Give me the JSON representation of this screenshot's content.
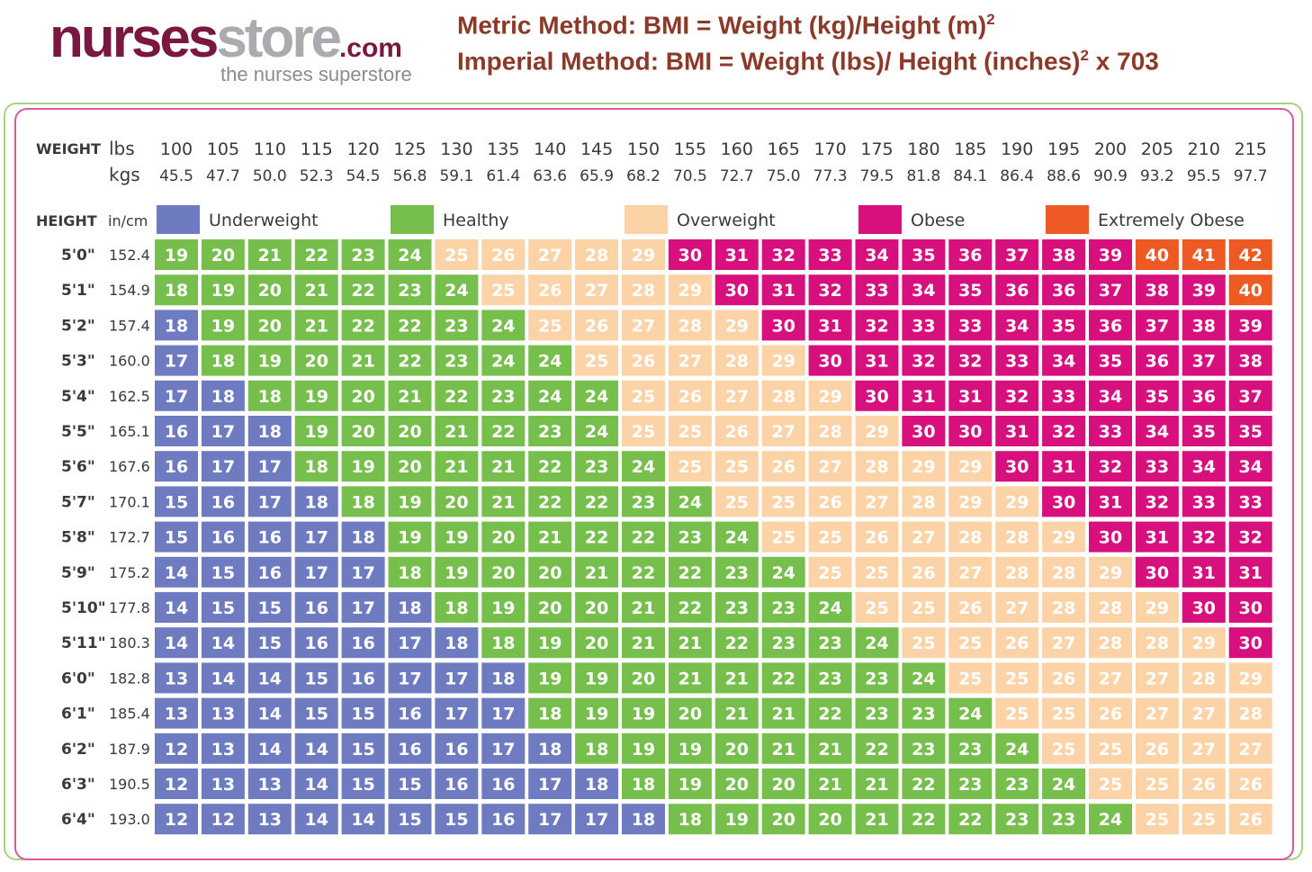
{
  "logo": {
    "brand_part1": "nurses",
    "brand_part2": "store",
    "brand_part3": ".com",
    "tagline": "the nurses superstore"
  },
  "formulas": {
    "metric": "Metric Method: BMI = Weight (kg)/Height (m)",
    "metric_sup": "2",
    "imperial": "Imperial Method: BMI = Weight (lbs)/ Height (inches)",
    "imperial_sup": "2",
    "imperial_suffix": " x 703"
  },
  "colors": {
    "Underweight": "#6f7bc0",
    "Healthy": "#76bf4c",
    "Overweight": "#fcd3a6",
    "Obese": "#d8107e",
    "Extremely Obese": "#ee5a24"
  },
  "chart_data": {
    "type": "heatmap",
    "header_labels": {
      "weight": "WEIGHT",
      "lbs": "lbs",
      "kgs": "kgs",
      "height": "HEIGHT",
      "incm": "in/cm"
    },
    "weights_lbs": [
      "100",
      "105",
      "110",
      "115",
      "120",
      "125",
      "130",
      "135",
      "140",
      "145",
      "150",
      "155",
      "160",
      "165",
      "170",
      "175",
      "180",
      "185",
      "190",
      "195",
      "200",
      "205",
      "210",
      "215"
    ],
    "weights_kgs": [
      "45.5",
      "47.7",
      "50.0",
      "52.3",
      "54.5",
      "56.8",
      "59.1",
      "61.4",
      "63.6",
      "65.9",
      "68.2",
      "70.5",
      "72.7",
      "75.0",
      "77.3",
      "79.5",
      "81.8",
      "84.1",
      "86.4",
      "88.6",
      "90.9",
      "93.2",
      "95.5",
      "97.7"
    ],
    "heights_ft": [
      "5'0\"",
      "5'1\"",
      "5'2\"",
      "5'3\"",
      "5'4\"",
      "5'5\"",
      "5'6\"",
      "5'7\"",
      "5'8\"",
      "5'9\"",
      "5'10\"",
      "5'11\"",
      "6'0\"",
      "6'1\"",
      "6'2\"",
      "6'3\"",
      "6'4\""
    ],
    "heights_cm": [
      "152.4",
      "154.9",
      "157.4",
      "160.0",
      "162.5",
      "165.1",
      "167.6",
      "170.1",
      "172.7",
      "175.2",
      "177.8",
      "180.3",
      "182.8",
      "185.4",
      "187.9",
      "190.5",
      "193.0"
    ],
    "legend": [
      "Underweight",
      "Healthy",
      "Overweight",
      "Obese",
      "Extremely Obese"
    ],
    "values": [
      [
        19,
        20,
        21,
        22,
        23,
        24,
        25,
        26,
        27,
        28,
        29,
        30,
        31,
        32,
        33,
        34,
        35,
        36,
        37,
        38,
        39,
        40,
        41,
        42
      ],
      [
        18,
        19,
        20,
        21,
        22,
        23,
        24,
        25,
        26,
        27,
        28,
        29,
        30,
        31,
        32,
        33,
        34,
        35,
        36,
        36,
        37,
        38,
        39,
        40
      ],
      [
        18,
        19,
        20,
        21,
        22,
        22,
        23,
        24,
        25,
        26,
        27,
        28,
        29,
        30,
        31,
        32,
        33,
        33,
        34,
        35,
        36,
        37,
        38,
        39
      ],
      [
        17,
        18,
        19,
        20,
        21,
        22,
        23,
        24,
        24,
        25,
        26,
        27,
        28,
        29,
        30,
        31,
        32,
        32,
        33,
        34,
        35,
        36,
        37,
        38
      ],
      [
        17,
        18,
        18,
        19,
        20,
        21,
        22,
        23,
        24,
        24,
        25,
        26,
        27,
        28,
        29,
        30,
        31,
        31,
        32,
        33,
        34,
        35,
        36,
        37
      ],
      [
        16,
        17,
        18,
        19,
        20,
        20,
        21,
        22,
        23,
        24,
        25,
        25,
        26,
        27,
        28,
        29,
        30,
        30,
        31,
        32,
        33,
        34,
        35,
        35
      ],
      [
        16,
        17,
        17,
        18,
        19,
        20,
        21,
        21,
        22,
        23,
        24,
        25,
        25,
        26,
        27,
        28,
        29,
        29,
        30,
        31,
        32,
        33,
        34,
        34
      ],
      [
        15,
        16,
        17,
        18,
        18,
        19,
        20,
        21,
        22,
        22,
        23,
        24,
        25,
        25,
        26,
        27,
        28,
        29,
        29,
        30,
        31,
        32,
        33,
        33
      ],
      [
        15,
        16,
        16,
        17,
        18,
        19,
        19,
        20,
        21,
        22,
        22,
        23,
        24,
        25,
        25,
        26,
        27,
        28,
        28,
        29,
        30,
        31,
        32,
        32
      ],
      [
        14,
        15,
        16,
        17,
        17,
        18,
        19,
        20,
        20,
        21,
        22,
        22,
        23,
        24,
        25,
        25,
        26,
        27,
        28,
        28,
        29,
        30,
        31,
        31
      ],
      [
        14,
        15,
        15,
        16,
        17,
        18,
        18,
        19,
        20,
        20,
        21,
        22,
        23,
        23,
        24,
        25,
        25,
        26,
        27,
        28,
        28,
        29,
        30,
        30
      ],
      [
        14,
        14,
        15,
        16,
        16,
        17,
        18,
        18,
        19,
        20,
        21,
        21,
        22,
        23,
        23,
        24,
        25,
        25,
        26,
        27,
        28,
        28,
        29,
        30
      ],
      [
        13,
        14,
        14,
        15,
        16,
        17,
        17,
        18,
        19,
        19,
        20,
        21,
        21,
        22,
        23,
        23,
        24,
        25,
        25,
        26,
        27,
        27,
        28,
        29
      ],
      [
        13,
        13,
        14,
        15,
        15,
        16,
        17,
        17,
        18,
        19,
        19,
        20,
        21,
        21,
        22,
        23,
        23,
        24,
        25,
        25,
        26,
        27,
        27,
        28
      ],
      [
        12,
        13,
        14,
        14,
        15,
        16,
        16,
        17,
        18,
        18,
        19,
        19,
        20,
        21,
        21,
        22,
        23,
        23,
        24,
        25,
        25,
        26,
        27,
        27
      ],
      [
        12,
        13,
        13,
        14,
        15,
        15,
        16,
        16,
        17,
        18,
        18,
        19,
        20,
        20,
        21,
        21,
        22,
        23,
        23,
        24,
        25,
        25,
        26,
        26
      ],
      [
        12,
        12,
        13,
        14,
        14,
        15,
        15,
        16,
        17,
        17,
        18,
        18,
        19,
        20,
        20,
        21,
        22,
        22,
        23,
        23,
        24,
        25,
        25,
        26
      ]
    ],
    "categories": [
      [
        "H",
        "H",
        "H",
        "H",
        "H",
        "H",
        "O",
        "O",
        "O",
        "O",
        "O",
        "B",
        "B",
        "B",
        "B",
        "B",
        "B",
        "B",
        "B",
        "B",
        "B",
        "E",
        "E",
        "E"
      ],
      [
        "H",
        "H",
        "H",
        "H",
        "H",
        "H",
        "H",
        "O",
        "O",
        "O",
        "O",
        "O",
        "B",
        "B",
        "B",
        "B",
        "B",
        "B",
        "B",
        "B",
        "B",
        "B",
        "B",
        "E"
      ],
      [
        "U",
        "H",
        "H",
        "H",
        "H",
        "H",
        "H",
        "H",
        "O",
        "O",
        "O",
        "O",
        "O",
        "B",
        "B",
        "B",
        "B",
        "B",
        "B",
        "B",
        "B",
        "B",
        "B",
        "B"
      ],
      [
        "U",
        "H",
        "H",
        "H",
        "H",
        "H",
        "H",
        "H",
        "H",
        "O",
        "O",
        "O",
        "O",
        "O",
        "B",
        "B",
        "B",
        "B",
        "B",
        "B",
        "B",
        "B",
        "B",
        "B"
      ],
      [
        "U",
        "U",
        "H",
        "H",
        "H",
        "H",
        "H",
        "H",
        "H",
        "H",
        "O",
        "O",
        "O",
        "O",
        "O",
        "B",
        "B",
        "B",
        "B",
        "B",
        "B",
        "B",
        "B",
        "B"
      ],
      [
        "U",
        "U",
        "U",
        "H",
        "H",
        "H",
        "H",
        "H",
        "H",
        "H",
        "O",
        "O",
        "O",
        "O",
        "O",
        "O",
        "B",
        "B",
        "B",
        "B",
        "B",
        "B",
        "B",
        "B"
      ],
      [
        "U",
        "U",
        "U",
        "H",
        "H",
        "H",
        "H",
        "H",
        "H",
        "H",
        "H",
        "O",
        "O",
        "O",
        "O",
        "O",
        "O",
        "O",
        "B",
        "B",
        "B",
        "B",
        "B",
        "B"
      ],
      [
        "U",
        "U",
        "U",
        "U",
        "H",
        "H",
        "H",
        "H",
        "H",
        "H",
        "H",
        "H",
        "O",
        "O",
        "O",
        "O",
        "O",
        "O",
        "O",
        "B",
        "B",
        "B",
        "B",
        "B"
      ],
      [
        "U",
        "U",
        "U",
        "U",
        "U",
        "H",
        "H",
        "H",
        "H",
        "H",
        "H",
        "H",
        "H",
        "O",
        "O",
        "O",
        "O",
        "O",
        "O",
        "O",
        "B",
        "B",
        "B",
        "B"
      ],
      [
        "U",
        "U",
        "U",
        "U",
        "U",
        "H",
        "H",
        "H",
        "H",
        "H",
        "H",
        "H",
        "H",
        "H",
        "O",
        "O",
        "O",
        "O",
        "O",
        "O",
        "O",
        "B",
        "B",
        "B"
      ],
      [
        "U",
        "U",
        "U",
        "U",
        "U",
        "U",
        "H",
        "H",
        "H",
        "H",
        "H",
        "H",
        "H",
        "H",
        "H",
        "O",
        "O",
        "O",
        "O",
        "O",
        "O",
        "O",
        "B",
        "B"
      ],
      [
        "U",
        "U",
        "U",
        "U",
        "U",
        "U",
        "U",
        "H",
        "H",
        "H",
        "H",
        "H",
        "H",
        "H",
        "H",
        "H",
        "O",
        "O",
        "O",
        "O",
        "O",
        "O",
        "O",
        "B"
      ],
      [
        "U",
        "U",
        "U",
        "U",
        "U",
        "U",
        "U",
        "U",
        "H",
        "H",
        "H",
        "H",
        "H",
        "H",
        "H",
        "H",
        "H",
        "O",
        "O",
        "O",
        "O",
        "O",
        "O",
        "O"
      ],
      [
        "U",
        "U",
        "U",
        "U",
        "U",
        "U",
        "U",
        "U",
        "H",
        "H",
        "H",
        "H",
        "H",
        "H",
        "H",
        "H",
        "H",
        "H",
        "O",
        "O",
        "O",
        "O",
        "O",
        "O"
      ],
      [
        "U",
        "U",
        "U",
        "U",
        "U",
        "U",
        "U",
        "U",
        "U",
        "H",
        "H",
        "H",
        "H",
        "H",
        "H",
        "H",
        "H",
        "H",
        "H",
        "O",
        "O",
        "O",
        "O",
        "O"
      ],
      [
        "U",
        "U",
        "U",
        "U",
        "U",
        "U",
        "U",
        "U",
        "U",
        "U",
        "H",
        "H",
        "H",
        "H",
        "H",
        "H",
        "H",
        "H",
        "H",
        "H",
        "O",
        "O",
        "O",
        "O"
      ],
      [
        "U",
        "U",
        "U",
        "U",
        "U",
        "U",
        "U",
        "U",
        "U",
        "U",
        "U",
        "H",
        "H",
        "H",
        "H",
        "H",
        "H",
        "H",
        "H",
        "H",
        "H",
        "O",
        "O",
        "O"
      ]
    ],
    "category_key": {
      "U": "Underweight",
      "H": "Healthy",
      "O": "Overweight",
      "B": "Obese",
      "E": "Extremely Obese"
    }
  }
}
